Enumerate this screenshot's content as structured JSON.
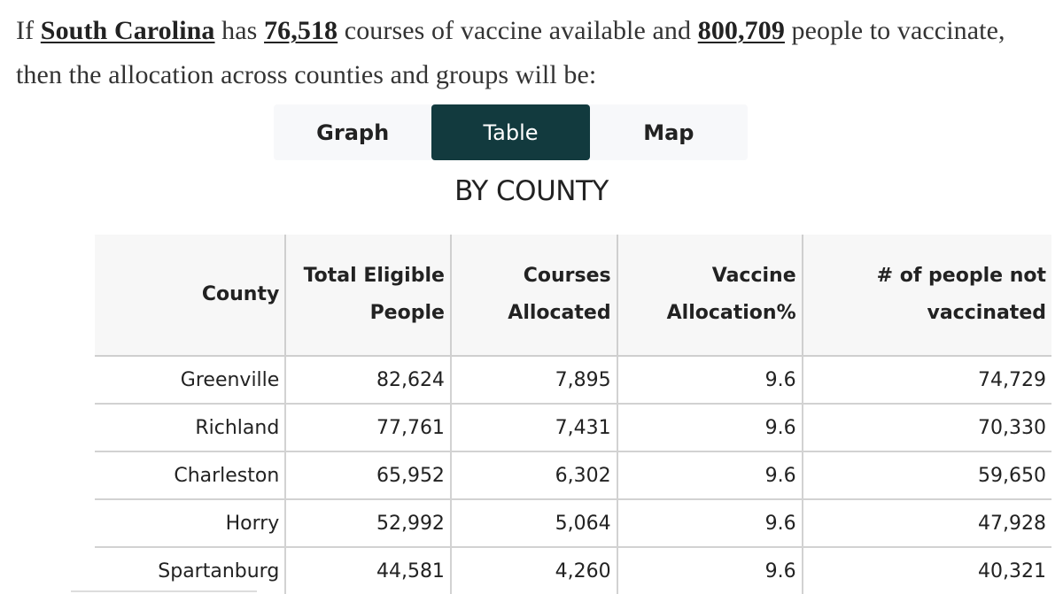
{
  "intro": {
    "prefix": "If",
    "state": "South Carolina",
    "has": "has",
    "courses": "76,518",
    "mid": "courses of vaccine available and",
    "people": "800,709",
    "suffix": "people to vaccinate, then the allocation across counties and groups will be:"
  },
  "tabs": [
    {
      "label": "Graph",
      "active": false
    },
    {
      "label": "Table",
      "active": true
    },
    {
      "label": "Map",
      "active": false
    }
  ],
  "colors": {
    "active_tab_bg": "#123a3e",
    "tab_bar_bg": "#f7f8fa",
    "header_bg": "#f7f7f7"
  },
  "section_title": "BY COUNTY",
  "table": {
    "headers": [
      "County",
      "Total Eligible People",
      "Courses Allocated",
      "Vaccine Allocation%",
      "# of people not vaccinated"
    ],
    "rows": [
      [
        "Greenville",
        "82,624",
        "7,895",
        "9.6",
        "74,729"
      ],
      [
        "Richland",
        "77,761",
        "7,431",
        "9.6",
        "70,330"
      ],
      [
        "Charleston",
        "65,952",
        "6,302",
        "9.6",
        "59,650"
      ],
      [
        "Horry",
        "52,992",
        "5,064",
        "9.6",
        "47,928"
      ],
      [
        "Spartanburg",
        "44,581",
        "4,260",
        "9.6",
        "40,321"
      ]
    ]
  }
}
